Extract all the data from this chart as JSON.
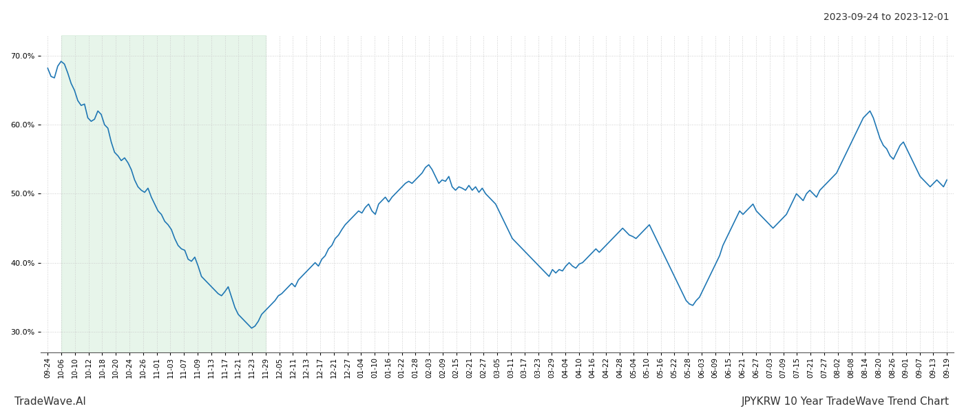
{
  "title_right": "2023-09-24 to 2023-12-01",
  "footer_left": "TradeWave.AI",
  "footer_right": "JPYKRW 10 Year TradeWave Trend Chart",
  "ylim": [
    27.0,
    73.0
  ],
  "yticks": [
    30.0,
    40.0,
    50.0,
    60.0,
    70.0
  ],
  "background_color": "#ffffff",
  "line_color": "#1f77b4",
  "line_width": 1.2,
  "shade_color": "#d4edda",
  "shade_alpha": 0.55,
  "shade_start_label": "10-06",
  "shade_end_label": "11-29",
  "x_tick_labels": [
    "09-24",
    "10-06",
    "10-10",
    "10-12",
    "10-18",
    "10-20",
    "10-24",
    "10-26",
    "11-01",
    "11-03",
    "11-07",
    "11-09",
    "11-13",
    "11-17",
    "11-21",
    "11-23",
    "11-29",
    "12-05",
    "12-11",
    "12-13",
    "12-17",
    "12-21",
    "12-27",
    "01-04",
    "01-10",
    "01-16",
    "01-22",
    "01-28",
    "02-03",
    "02-09",
    "02-15",
    "02-21",
    "02-27",
    "03-05",
    "03-11",
    "03-17",
    "03-23",
    "03-29",
    "04-04",
    "04-10",
    "04-16",
    "04-22",
    "04-28",
    "05-04",
    "05-10",
    "05-16",
    "05-22",
    "05-28",
    "06-03",
    "06-09",
    "06-15",
    "06-21",
    "06-27",
    "07-03",
    "07-09",
    "07-15",
    "07-21",
    "07-27",
    "08-02",
    "08-08",
    "08-14",
    "08-20",
    "08-26",
    "09-01",
    "09-07",
    "09-13",
    "09-19"
  ],
  "values": [
    68.2,
    67.0,
    66.8,
    68.5,
    69.2,
    68.8,
    67.5,
    66.0,
    65.0,
    63.5,
    62.8,
    63.0,
    61.0,
    60.5,
    60.8,
    62.0,
    61.5,
    60.0,
    59.5,
    57.5,
    56.0,
    55.5,
    54.8,
    55.2,
    54.5,
    53.5,
    52.0,
    51.0,
    50.5,
    50.2,
    50.8,
    49.5,
    48.5,
    47.5,
    47.0,
    46.0,
    45.5,
    44.8,
    43.5,
    42.5,
    42.0,
    41.8,
    40.5,
    40.2,
    40.8,
    39.5,
    38.0,
    37.5,
    37.0,
    36.5,
    36.0,
    35.5,
    35.2,
    35.8,
    36.5,
    35.0,
    33.5,
    32.5,
    32.0,
    31.5,
    31.0,
    30.5,
    30.8,
    31.5,
    32.5,
    33.0,
    33.5,
    34.0,
    34.5,
    35.2,
    35.5,
    36.0,
    36.5,
    37.0,
    36.5,
    37.5,
    38.0,
    38.5,
    39.0,
    39.5,
    40.0,
    39.5,
    40.5,
    41.0,
    42.0,
    42.5,
    43.5,
    44.0,
    44.8,
    45.5,
    46.0,
    46.5,
    47.0,
    47.5,
    47.2,
    48.0,
    48.5,
    47.5,
    47.0,
    48.5,
    49.0,
    49.5,
    48.8,
    49.5,
    50.0,
    50.5,
    51.0,
    51.5,
    51.8,
    51.5,
    52.0,
    52.5,
    53.0,
    53.8,
    54.2,
    53.5,
    52.5,
    51.5,
    52.0,
    51.8,
    52.5,
    51.0,
    50.5,
    51.0,
    50.8,
    50.5,
    51.2,
    50.5,
    51.0,
    50.2,
    50.8,
    50.0,
    49.5,
    49.0,
    48.5,
    47.5,
    46.5,
    45.5,
    44.5,
    43.5,
    43.0,
    42.5,
    42.0,
    41.5,
    41.0,
    40.5,
    40.0,
    39.5,
    39.0,
    38.5,
    38.0,
    39.0,
    38.5,
    39.0,
    38.8,
    39.5,
    40.0,
    39.5,
    39.2,
    39.8,
    40.0,
    40.5,
    41.0,
    41.5,
    42.0,
    41.5,
    42.0,
    42.5,
    43.0,
    43.5,
    44.0,
    44.5,
    45.0,
    44.5,
    44.0,
    43.8,
    43.5,
    44.0,
    44.5,
    45.0,
    45.5,
    44.5,
    43.5,
    42.5,
    41.5,
    40.5,
    39.5,
    38.5,
    37.5,
    36.5,
    35.5,
    34.5,
    34.0,
    33.8,
    34.5,
    35.0,
    36.0,
    37.0,
    38.0,
    39.0,
    40.0,
    41.0,
    42.5,
    43.5,
    44.5,
    45.5,
    46.5,
    47.5,
    47.0,
    47.5,
    48.0,
    48.5,
    47.5,
    47.0,
    46.5,
    46.0,
    45.5,
    45.0,
    45.5,
    46.0,
    46.5,
    47.0,
    48.0,
    49.0,
    50.0,
    49.5,
    49.0,
    50.0,
    50.5,
    50.0,
    49.5,
    50.5,
    51.0,
    51.5,
    52.0,
    52.5,
    53.0,
    54.0,
    55.0,
    56.0,
    57.0,
    58.0,
    59.0,
    60.0,
    61.0,
    61.5,
    62.0,
    61.0,
    59.5,
    58.0,
    57.0,
    56.5,
    55.5,
    55.0,
    56.0,
    57.0,
    57.5,
    56.5,
    55.5,
    54.5,
    53.5,
    52.5,
    52.0,
    51.5,
    51.0,
    51.5,
    52.0,
    51.5,
    51.0,
    52.0
  ],
  "n_data_points": 267,
  "n_tick_labels": 67,
  "grid_color": "#cccccc",
  "grid_linestyle": ":",
  "tick_fontsize": 7.5,
  "footer_fontsize": 11,
  "title_fontsize": 10
}
